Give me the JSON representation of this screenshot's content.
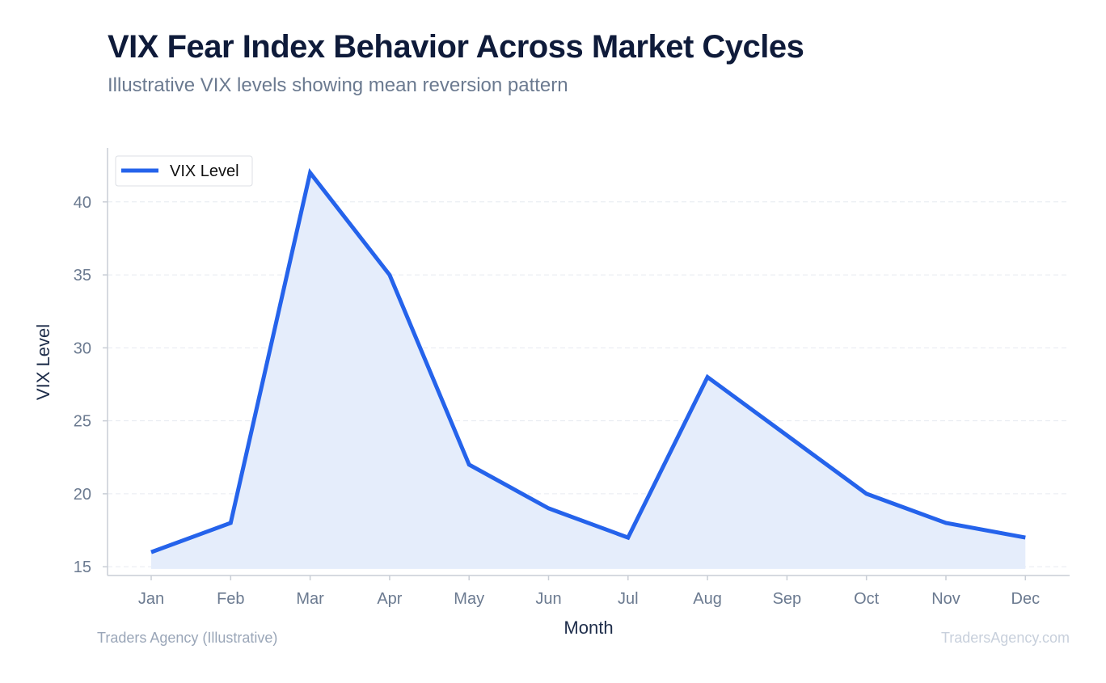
{
  "title": "VIX Fear Index Behavior Across Market Cycles",
  "subtitle": "Illustrative VIX levels showing mean reversion pattern",
  "footer": {
    "source": "Traders Agency (Illustrative)",
    "watermark": "TradersAgency.com"
  },
  "colors": {
    "line": "#2563eb",
    "fill": "#e5edfb",
    "grid": "#e6eaf0",
    "axis": "#c9ced6"
  },
  "chart_data": {
    "type": "area",
    "title": "VIX Fear Index Behavior Across Market Cycles",
    "subtitle": "Illustrative VIX levels showing mean reversion pattern",
    "xlabel": "Month",
    "ylabel": "VIX Level",
    "categories": [
      "Jan",
      "Feb",
      "Mar",
      "Apr",
      "May",
      "Jun",
      "Jul",
      "Aug",
      "Sep",
      "Oct",
      "Nov",
      "Dec"
    ],
    "series": [
      {
        "name": "VIX Level",
        "values": [
          16,
          18,
          42,
          35,
          22,
          19,
          17,
          28,
          24,
          20,
          18,
          17
        ]
      }
    ],
    "ylim": [
      14.4,
      43.7
    ],
    "yticks": [
      15,
      20,
      25,
      30,
      35,
      40
    ],
    "grid": true,
    "legend": "top-left"
  }
}
